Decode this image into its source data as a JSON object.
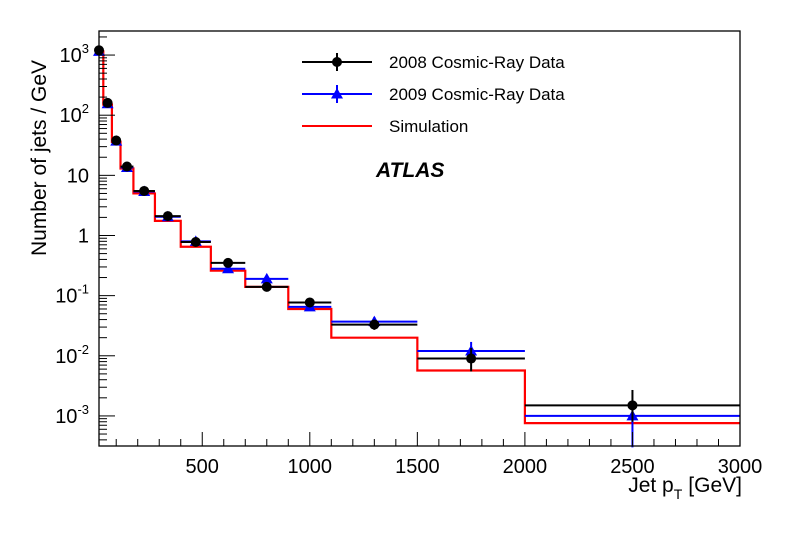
{
  "chart_data": {
    "type": "line",
    "title": "",
    "xlabel": "Jet p",
    "xlabel_sub": "T",
    "xlabel_unit": "[GeV]",
    "ylabel": "Number of jets / GeV",
    "xlim": [
      20,
      3000
    ],
    "ylim_log10": [
      -3.5,
      3.4
    ],
    "yscale": "log",
    "x_ticks": [
      {
        "value": 500,
        "label": "500"
      },
      {
        "value": 1000,
        "label": "1000"
      },
      {
        "value": 1500,
        "label": "1500"
      },
      {
        "value": 2000,
        "label": "2000"
      },
      {
        "value": 2500,
        "label": "2500"
      },
      {
        "value": 3000,
        "label": "3000"
      }
    ],
    "y_ticks": [
      {
        "log": 3,
        "base": "10",
        "exp": "3"
      },
      {
        "log": 2,
        "base": "10",
        "exp": "2"
      },
      {
        "log": 1,
        "base": "10",
        "exp": ""
      },
      {
        "log": 0,
        "base": "1",
        "exp": ""
      },
      {
        "log": -1,
        "base": "10",
        "exp": "-1"
      },
      {
        "log": -2,
        "base": "10",
        "exp": "-2"
      },
      {
        "log": -3,
        "base": "10",
        "exp": "-3"
      }
    ],
    "annotation": "ATLAS",
    "legend": {
      "placement": "top-center",
      "entries": [
        {
          "label": "2008 Cosmic-Ray Data",
          "color": "#000000",
          "marker": "circle"
        },
        {
          "label": "2009 Cosmic-Ray Data",
          "color": "#0000ff",
          "marker": "triangle"
        },
        {
          "label": "Simulation",
          "color": "#ff0000",
          "marker": "line"
        }
      ]
    },
    "series": [
      {
        "name": "2008 Cosmic-Ray Data",
        "color": "#000000",
        "marker": "circle",
        "points": [
          {
            "x": 20,
            "y": 1200,
            "xlo": 20,
            "xhi": 40,
            "ylo": 1100,
            "yhi": 1300
          },
          {
            "x": 60,
            "y": 160,
            "xlo": 40,
            "xhi": 80,
            "ylo": 150,
            "yhi": 170
          },
          {
            "x": 100,
            "y": 38,
            "xlo": 80,
            "xhi": 120,
            "ylo": 35,
            "yhi": 41
          },
          {
            "x": 150,
            "y": 14,
            "xlo": 120,
            "xhi": 180,
            "ylo": 13,
            "yhi": 15
          },
          {
            "x": 230,
            "y": 5.5,
            "xlo": 180,
            "xhi": 280,
            "ylo": 5.1,
            "yhi": 5.9
          },
          {
            "x": 340,
            "y": 2.1,
            "xlo": 280,
            "xhi": 400,
            "ylo": 1.95,
            "yhi": 2.25
          },
          {
            "x": 470,
            "y": 0.78,
            "xlo": 400,
            "xhi": 540,
            "ylo": 0.72,
            "yhi": 0.85
          },
          {
            "x": 620,
            "y": 0.35,
            "xlo": 540,
            "xhi": 700,
            "ylo": 0.32,
            "yhi": 0.38
          },
          {
            "x": 800,
            "y": 0.14,
            "xlo": 700,
            "xhi": 900,
            "ylo": 0.125,
            "yhi": 0.155
          },
          {
            "x": 1000,
            "y": 0.077,
            "xlo": 900,
            "xhi": 1100,
            "ylo": 0.068,
            "yhi": 0.087
          },
          {
            "x": 1300,
            "y": 0.033,
            "xlo": 1100,
            "xhi": 1500,
            "ylo": 0.027,
            "yhi": 0.04
          },
          {
            "x": 1750,
            "y": 0.009,
            "xlo": 1500,
            "xhi": 2000,
            "ylo": 0.0055,
            "yhi": 0.0135
          },
          {
            "x": 2500,
            "y": 0.0015,
            "xlo": 2000,
            "xhi": 3000,
            "ylo": 0.0008,
            "yhi": 0.0027
          }
        ]
      },
      {
        "name": "2009 Cosmic-Ray Data",
        "color": "#0000ff",
        "marker": "triangle",
        "points": [
          {
            "x": 20,
            "y": 1150,
            "xlo": 20,
            "xhi": 40,
            "ylo": 1050,
            "yhi": 1250
          },
          {
            "x": 60,
            "y": 155,
            "xlo": 40,
            "xhi": 80,
            "ylo": 145,
            "yhi": 165
          },
          {
            "x": 100,
            "y": 37,
            "xlo": 80,
            "xhi": 120,
            "ylo": 34,
            "yhi": 40
          },
          {
            "x": 150,
            "y": 13.5,
            "xlo": 120,
            "xhi": 180,
            "ylo": 12.5,
            "yhi": 14.5
          },
          {
            "x": 230,
            "y": 5.4,
            "xlo": 180,
            "xhi": 280,
            "ylo": 5.0,
            "yhi": 5.8
          },
          {
            "x": 340,
            "y": 2.05,
            "xlo": 280,
            "xhi": 400,
            "ylo": 1.9,
            "yhi": 2.2
          },
          {
            "x": 470,
            "y": 0.8,
            "xlo": 400,
            "xhi": 540,
            "ylo": 0.74,
            "yhi": 0.87
          },
          {
            "x": 620,
            "y": 0.28,
            "xlo": 540,
            "xhi": 700,
            "ylo": 0.25,
            "yhi": 0.31
          },
          {
            "x": 800,
            "y": 0.19,
            "xlo": 700,
            "xhi": 900,
            "ylo": 0.17,
            "yhi": 0.21
          },
          {
            "x": 1000,
            "y": 0.065,
            "xlo": 900,
            "xhi": 1100,
            "ylo": 0.056,
            "yhi": 0.075
          },
          {
            "x": 1300,
            "y": 0.037,
            "xlo": 1100,
            "xhi": 1500,
            "ylo": 0.031,
            "yhi": 0.044
          },
          {
            "x": 1750,
            "y": 0.012,
            "xlo": 1500,
            "xhi": 2000,
            "ylo": 0.008,
            "yhi": 0.017
          },
          {
            "x": 2500,
            "y": 0.001,
            "xlo": 2000,
            "xhi": 3000,
            "ylo": 0.0003,
            "yhi": 0.0018
          }
        ]
      },
      {
        "name": "Simulation",
        "color": "#ff0000",
        "style": "step",
        "bins": [
          {
            "xlo": 20,
            "xhi": 40,
            "y": 1150
          },
          {
            "xlo": 40,
            "xhi": 80,
            "y": 150
          },
          {
            "xlo": 80,
            "xhi": 120,
            "y": 36
          },
          {
            "xlo": 120,
            "xhi": 180,
            "y": 13
          },
          {
            "xlo": 180,
            "xhi": 280,
            "y": 5.0
          },
          {
            "xlo": 280,
            "xhi": 400,
            "y": 1.75
          },
          {
            "xlo": 400,
            "xhi": 540,
            "y": 0.65
          },
          {
            "xlo": 540,
            "xhi": 700,
            "y": 0.26
          },
          {
            "xlo": 700,
            "xhi": 900,
            "y": 0.14
          },
          {
            "xlo": 900,
            "xhi": 1100,
            "y": 0.06
          },
          {
            "xlo": 1100,
            "xhi": 1500,
            "y": 0.02
          },
          {
            "xlo": 1500,
            "xhi": 2000,
            "y": 0.0057
          },
          {
            "xlo": 2000,
            "xhi": 3000,
            "y": 0.00076
          }
        ]
      }
    ]
  }
}
